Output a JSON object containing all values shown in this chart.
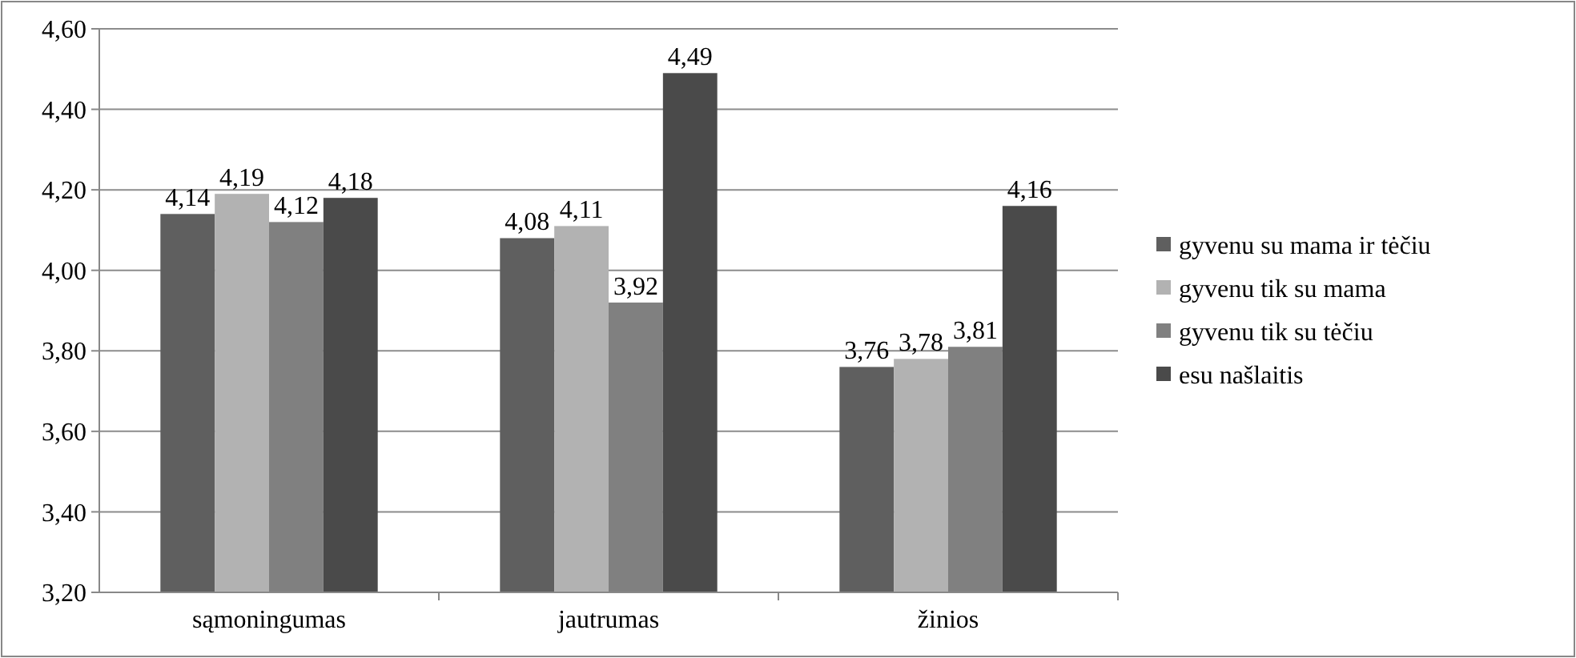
{
  "chart_data": {
    "type": "bar",
    "categories": [
      "sąmoningumas",
      "jautrumas",
      "žinios"
    ],
    "series": [
      {
        "name": "gyvenu su mama ir tėčiu",
        "color": "#5f5f5f",
        "values": [
          4.14,
          4.08,
          3.76
        ],
        "value_labels": [
          "4,14",
          "4,08",
          "3,76"
        ]
      },
      {
        "name": "gyvenu tik su mama",
        "color": "#b2b2b2",
        "values": [
          4.19,
          4.11,
          3.78
        ],
        "value_labels": [
          "4,19",
          "4,11",
          "3,78"
        ]
      },
      {
        "name": "gyvenu tik su tėčiu",
        "color": "#808080",
        "values": [
          4.12,
          3.92,
          3.81
        ],
        "value_labels": [
          "4,12",
          "3,92",
          "3,81"
        ]
      },
      {
        "name": "esu našlaitis",
        "color": "#4a4a4a",
        "values": [
          4.18,
          4.49,
          4.16
        ],
        "value_labels": [
          "4,18",
          "4,49",
          "4,16"
        ]
      }
    ],
    "ylim": [
      3.2,
      4.6
    ],
    "yticks": [
      {
        "value": 3.2,
        "label": "3,20"
      },
      {
        "value": 3.4,
        "label": "3,40"
      },
      {
        "value": 3.6,
        "label": "3,60"
      },
      {
        "value": 3.8,
        "label": "3,80"
      },
      {
        "value": 4.0,
        "label": "4,00"
      },
      {
        "value": 4.2,
        "label": "4,20"
      },
      {
        "value": 4.4,
        "label": "4,40"
      },
      {
        "value": 4.6,
        "label": "4,60"
      }
    ],
    "grid": "y",
    "legend": "right"
  }
}
